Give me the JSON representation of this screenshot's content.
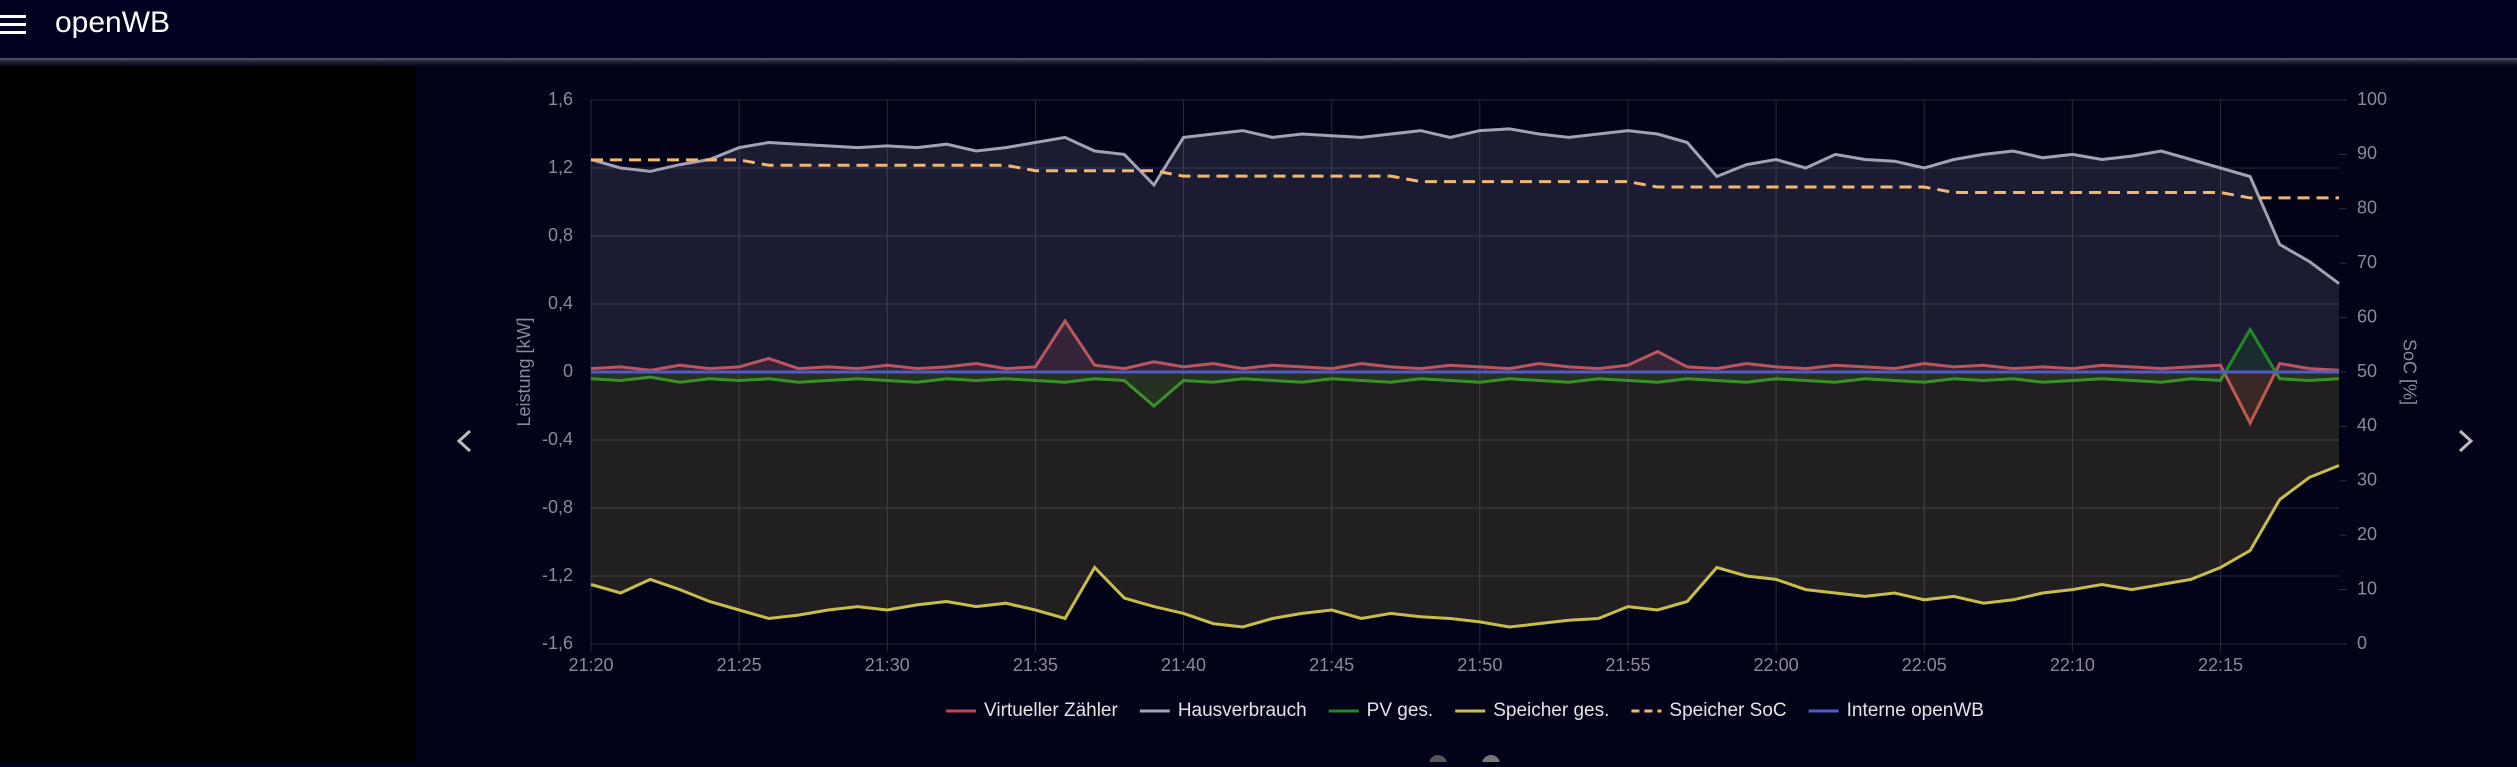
{
  "header": {
    "title": "openWB"
  },
  "chart_data": {
    "type": "line",
    "ylabel": "Leistung [kW]",
    "y2label": "SoC [%]",
    "categories": [
      "21:20",
      null,
      null,
      null,
      null,
      "21:25",
      null,
      null,
      null,
      null,
      "21:30",
      null,
      null,
      null,
      null,
      "21:35",
      null,
      null,
      null,
      null,
      "21:40",
      null,
      null,
      null,
      null,
      "21:45",
      null,
      null,
      null,
      null,
      "21:50",
      null,
      null,
      null,
      null,
      "21:55",
      null,
      null,
      null,
      null,
      "22:00",
      null,
      null,
      null,
      null,
      "22:05",
      null,
      null,
      null,
      null,
      "22:10",
      null,
      null,
      null,
      null,
      "22:15",
      null,
      null,
      null,
      null
    ],
    "ylim": [
      -1.6,
      1.6
    ],
    "yticks": [
      {
        "value": -1.6,
        "label": "-1,6"
      },
      {
        "value": -1.2,
        "label": "-1,2"
      },
      {
        "value": -0.8,
        "label": "-0,8"
      },
      {
        "value": -0.4,
        "label": "-0,4"
      },
      0,
      {
        "value": 0.4,
        "label": "0,4"
      },
      {
        "value": 0.8,
        "label": "0,8"
      },
      {
        "value": 1.2,
        "label": "1,2"
      },
      {
        "value": 1.6,
        "label": "1,6"
      }
    ],
    "y2lim": [
      0,
      100
    ],
    "y2ticks": [
      0,
      10,
      20,
      30,
      40,
      50,
      60,
      70,
      80,
      90,
      100
    ],
    "grid": true,
    "series": [
      {
        "name": "Virtueller Zähler",
        "color": "#c0474f",
        "fill": true,
        "values": [
          0.02,
          0.03,
          0.01,
          0.04,
          0.02,
          0.03,
          0.08,
          0.02,
          0.03,
          0.02,
          0.04,
          0.02,
          0.03,
          0.05,
          0.02,
          0.03,
          0.3,
          0.04,
          0.02,
          0.06,
          0.03,
          0.05,
          0.02,
          0.04,
          0.03,
          0.02,
          0.05,
          0.03,
          0.02,
          0.04,
          0.03,
          0.02,
          0.05,
          0.03,
          0.02,
          0.04,
          0.12,
          0.03,
          0.02,
          0.05,
          0.03,
          0.02,
          0.04,
          0.03,
          0.02,
          0.05,
          0.03,
          0.04,
          0.02,
          0.03,
          0.02,
          0.04,
          0.03,
          0.02,
          0.03,
          0.04,
          -0.3,
          0.05,
          0.02,
          0.01
        ]
      },
      {
        "name": "Hausverbrauch",
        "color": "#a2a2b4",
        "fill": true,
        "values": [
          1.25,
          1.2,
          1.18,
          1.22,
          1.25,
          1.32,
          1.35,
          1.34,
          1.33,
          1.32,
          1.33,
          1.32,
          1.34,
          1.3,
          1.32,
          1.35,
          1.38,
          1.3,
          1.28,
          1.1,
          1.38,
          1.4,
          1.42,
          1.38,
          1.4,
          1.39,
          1.38,
          1.4,
          1.42,
          1.38,
          1.42,
          1.43,
          1.4,
          1.38,
          1.4,
          1.42,
          1.4,
          1.35,
          1.15,
          1.22,
          1.25,
          1.2,
          1.28,
          1.25,
          1.24,
          1.2,
          1.25,
          1.28,
          1.3,
          1.26,
          1.28,
          1.25,
          1.27,
          1.3,
          1.25,
          1.2,
          1.15,
          0.75,
          0.65,
          0.52
        ]
      },
      {
        "name": "PV ges.",
        "color": "#1f8a24",
        "fill": true,
        "values": [
          -0.04,
          -0.05,
          -0.03,
          -0.06,
          -0.04,
          -0.05,
          -0.04,
          -0.06,
          -0.05,
          -0.04,
          -0.05,
          -0.06,
          -0.04,
          -0.05,
          -0.04,
          -0.05,
          -0.06,
          -0.04,
          -0.05,
          -0.2,
          -0.05,
          -0.06,
          -0.04,
          -0.05,
          -0.06,
          -0.04,
          -0.05,
          -0.06,
          -0.04,
          -0.05,
          -0.06,
          -0.04,
          -0.05,
          -0.06,
          -0.04,
          -0.05,
          -0.06,
          -0.04,
          -0.05,
          -0.06,
          -0.04,
          -0.05,
          -0.06,
          -0.04,
          -0.05,
          -0.06,
          -0.04,
          -0.05,
          -0.04,
          -0.06,
          -0.05,
          -0.04,
          -0.05,
          -0.06,
          -0.04,
          -0.05,
          0.25,
          -0.04,
          -0.05,
          -0.04
        ]
      },
      {
        "name": "Speicher ges.",
        "color": "#c9bd4a",
        "fill": true,
        "values": [
          -1.25,
          -1.3,
          -1.22,
          -1.28,
          -1.35,
          -1.4,
          -1.45,
          -1.43,
          -1.4,
          -1.38,
          -1.4,
          -1.37,
          -1.35,
          -1.38,
          -1.36,
          -1.4,
          -1.45,
          -1.15,
          -1.33,
          -1.38,
          -1.42,
          -1.48,
          -1.5,
          -1.45,
          -1.42,
          -1.4,
          -1.45,
          -1.42,
          -1.44,
          -1.45,
          -1.47,
          -1.5,
          -1.48,
          -1.46,
          -1.45,
          -1.38,
          -1.4,
          -1.35,
          -1.15,
          -1.2,
          -1.22,
          -1.28,
          -1.3,
          -1.32,
          -1.3,
          -1.34,
          -1.32,
          -1.36,
          -1.34,
          -1.3,
          -1.28,
          -1.25,
          -1.28,
          -1.25,
          -1.22,
          -1.15,
          -1.05,
          -0.75,
          -0.62,
          -0.55
        ]
      },
      {
        "name": "Speicher SoC",
        "color": "#f2b672",
        "dashed": true,
        "axis": "y2",
        "values": [
          89,
          89,
          89,
          89,
          89,
          89,
          88,
          88,
          88,
          88,
          88,
          88,
          88,
          88,
          88,
          87,
          87,
          87,
          87,
          87,
          86,
          86,
          86,
          86,
          86,
          86,
          86,
          86,
          85,
          85,
          85,
          85,
          85,
          85,
          85,
          85,
          84,
          84,
          84,
          84,
          84,
          84,
          84,
          84,
          84,
          84,
          83,
          83,
          83,
          83,
          83,
          83,
          83,
          83,
          83,
          83,
          82,
          82,
          82,
          82
        ]
      },
      {
        "name": "Interne openWB",
        "color": "#4f5cc4",
        "values": [
          0,
          0,
          0,
          0,
          0,
          0,
          0,
          0,
          0,
          0,
          0,
          0,
          0,
          0,
          0,
          0,
          0,
          0,
          0,
          0,
          0,
          0,
          0,
          0,
          0,
          0,
          0,
          0,
          0,
          0,
          0,
          0,
          0,
          0,
          0,
          0,
          0,
          0,
          0,
          0,
          0,
          0,
          0,
          0,
          0,
          0,
          0,
          0,
          0,
          0,
          0,
          0,
          0,
          0,
          0,
          0,
          0,
          0,
          0,
          0
        ]
      }
    ]
  }
}
